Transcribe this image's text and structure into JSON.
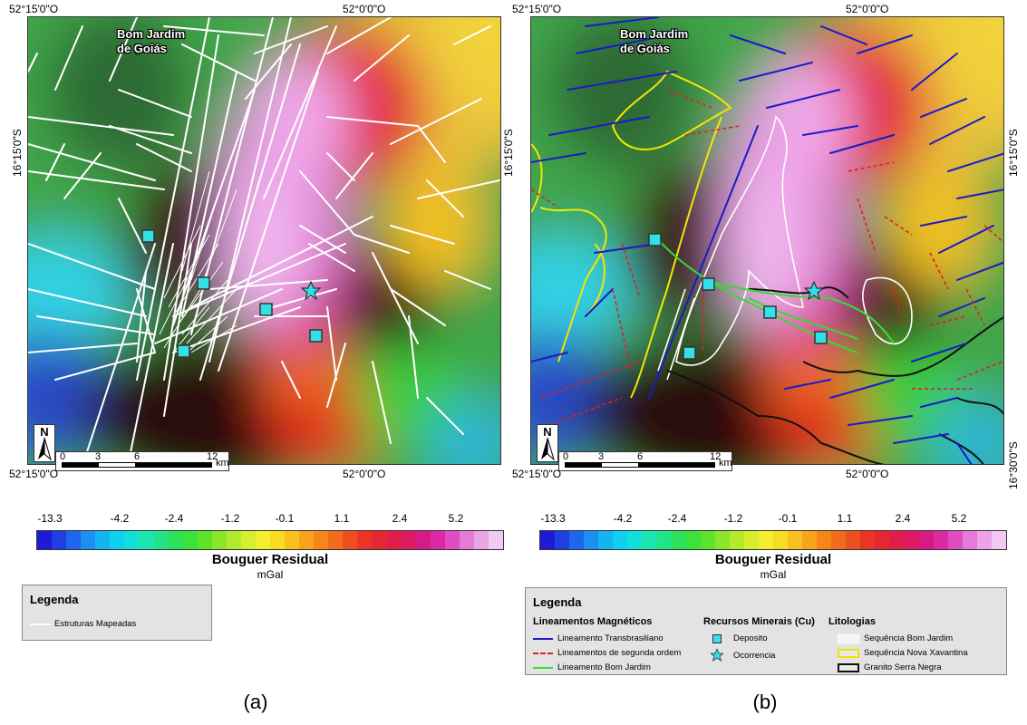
{
  "town": {
    "line1": "Bom Jardim",
    "line2": "de Goiás"
  },
  "coords": {
    "top_left": "52°15'0\"O",
    "top_mid": "52°0'0\"O",
    "bottom_left": "52°15'0\"O",
    "bottom_mid": "52°0'0\"O",
    "right_upper": "16°15'0\"S",
    "left_upper": "16°15'0\"S",
    "right_lower": "16°30'0\"S"
  },
  "north_label": "N",
  "scale": {
    "ticks": [
      "0",
      "3",
      "6",
      "12"
    ],
    "unit": "km"
  },
  "colorbar": {
    "ticks": [
      "-13.3",
      "-4.2",
      "-2.4",
      "-1.2",
      "-0.1",
      "1.1",
      "2.4",
      "5.2"
    ],
    "title": "Bouguer Residual",
    "unit": "mGal",
    "colors": [
      "#1d1bd6",
      "#1f3fe3",
      "#1f66ee",
      "#1c8ff2",
      "#14b3f2",
      "#0fd0ee",
      "#10e0d8",
      "#1ce6b0",
      "#22e487",
      "#2ce25b",
      "#3ce23a",
      "#5ee22a",
      "#8ae62a",
      "#b4ea2c",
      "#d7ee2e",
      "#f2f02e",
      "#f7dc24",
      "#f8c11f",
      "#f8a41b",
      "#f6861a",
      "#f26a1c",
      "#ee4f20",
      "#ea3526",
      "#e52633",
      "#e01e49",
      "#dc1b63",
      "#d81b82",
      "#dc2aa4",
      "#e14bc3",
      "#e57ad8",
      "#eba4e5",
      "#f2c9f0"
    ]
  },
  "legend_a": {
    "title": "Legenda",
    "item": "Estruturas Mapeadas"
  },
  "legend_b": {
    "title": "Legenda",
    "head_lineaments": "Lineamentos Magnéticos",
    "head_resources": "Recursos Minerais (Cu)",
    "head_litho": "Litologias",
    "lin1": "Lineamento Transbrasiliano",
    "lin2": "Lineamentos de segunda ordem",
    "lin3": "Lineamento Bom Jardim",
    "res1": "Deposito",
    "res2": "Ocorrencia",
    "lit1": "Sequência Bom Jardim",
    "lit2": "Sequência Nova Xavantina",
    "lit3": "Granito Serra Negra"
  },
  "captions": {
    "a": "(a)",
    "b": "(b)"
  },
  "palette": {
    "transbrasiliano": "#1a1acc",
    "second_order": "#e02020",
    "bom_jardim": "#33dd33",
    "seq_bom_jardim": "#ffffff",
    "seq_nova_xavantina": "#f2e600",
    "granito": "#111111",
    "deposit": "#33e0e8"
  }
}
